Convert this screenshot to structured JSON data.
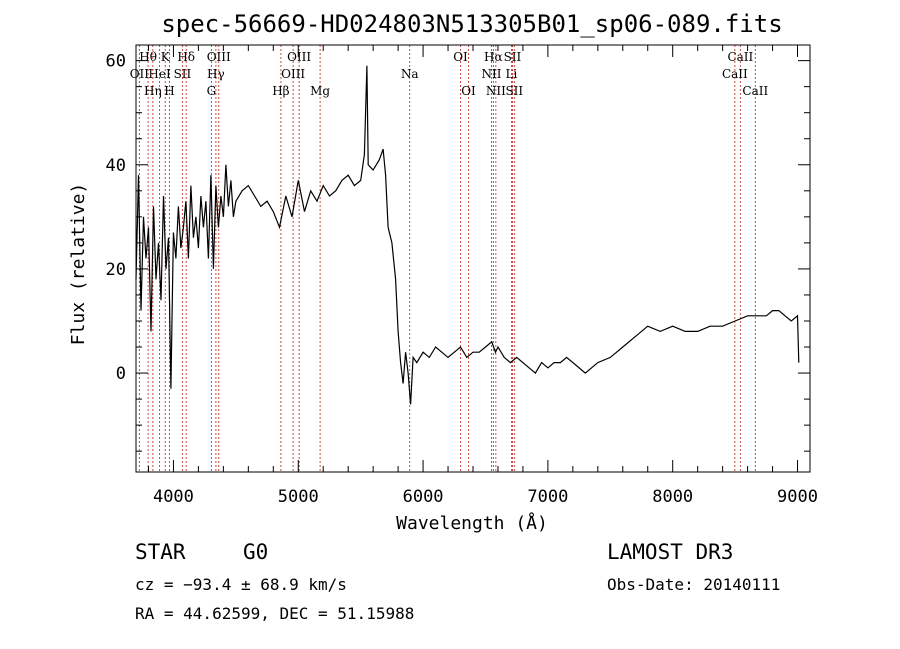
{
  "chart_data": {
    "type": "line",
    "title": "spec-56669-HD024803N513305B01_sp06-089.fits",
    "xlabel": "Wavelength (Å)",
    "ylabel": "Flux (relative)",
    "xlim": [
      3700,
      9100
    ],
    "ylim": [
      -19,
      63
    ],
    "xticks": [
      4000,
      5000,
      6000,
      7000,
      8000,
      9000
    ],
    "yticks": [
      0,
      20,
      40,
      60
    ],
    "grid": false,
    "series": [
      {
        "x": [
          3700,
          3720,
          3740,
          3760,
          3780,
          3800,
          3820,
          3840,
          3860,
          3880,
          3900,
          3920,
          3940,
          3960,
          3980,
          4000,
          4020,
          4040,
          4060,
          4080,
          4100,
          4120,
          4140,
          4160,
          4180,
          4200,
          4220,
          4240,
          4260,
          4280,
          4300,
          4320,
          4340,
          4360,
          4380,
          4400,
          4420,
          4440,
          4460,
          4480,
          4500,
          4550,
          4600,
          4650,
          4700,
          4750,
          4800,
          4850,
          4900,
          4950,
          5000,
          5050,
          5100,
          5150,
          5200,
          5250,
          5300,
          5350,
          5400,
          5450,
          5500,
          5530,
          5550,
          5560,
          5600,
          5650,
          5680,
          5700,
          5720,
          5750,
          5780,
          5800,
          5820,
          5840,
          5860,
          5880,
          5900,
          5920,
          5950,
          6000,
          6050,
          6100,
          6150,
          6200,
          6250,
          6300,
          6350,
          6400,
          6450,
          6500,
          6550,
          6580,
          6600,
          6650,
          6700,
          6750,
          6800,
          6850,
          6900,
          6950,
          7000,
          7050,
          7100,
          7150,
          7200,
          7300,
          7400,
          7500,
          7600,
          7700,
          7800,
          7900,
          8000,
          8100,
          8200,
          8300,
          8400,
          8500,
          8600,
          8700,
          8750,
          8800,
          8850,
          8900,
          8950,
          9000,
          9010
        ],
        "y": [
          18,
          38,
          12,
          30,
          22,
          28,
          8,
          32,
          18,
          25,
          14,
          34,
          20,
          26,
          -3,
          27,
          22,
          32,
          24,
          28,
          33,
          22,
          36,
          26,
          30,
          24,
          34,
          28,
          33,
          22,
          38,
          20,
          36,
          28,
          34,
          30,
          40,
          32,
          37,
          30,
          33,
          35,
          36,
          34,
          32,
          33,
          31,
          28,
          34,
          30,
          37,
          31,
          35,
          33,
          36,
          34,
          35,
          37,
          38,
          36,
          37,
          42,
          59,
          40,
          39,
          41,
          43,
          38,
          28,
          25,
          18,
          8,
          2,
          -2,
          4,
          0,
          -6,
          3,
          2,
          4,
          3,
          5,
          4,
          3,
          4,
          5,
          3,
          4,
          4,
          5,
          6,
          4,
          5,
          3,
          2,
          3,
          2,
          1,
          0,
          2,
          1,
          2,
          2,
          3,
          2,
          0,
          2,
          3,
          5,
          7,
          9,
          8,
          9,
          8,
          8,
          9,
          9,
          10,
          11,
          11,
          11,
          12,
          12,
          11,
          10,
          11,
          2
        ]
      }
    ],
    "emission_lines": [
      {
        "label": "OII",
        "wave": 3727,
        "row": 1
      },
      {
        "label": "Hθ",
        "wave": 3797,
        "row": 0
      },
      {
        "label": "Hη",
        "wave": 3835,
        "row": 2
      },
      {
        "label": "HeI",
        "wave": 3889,
        "row": 1
      },
      {
        "label": "K",
        "wave": 3934,
        "row": 0
      },
      {
        "label": "H",
        "wave": 3968,
        "row": 2
      },
      {
        "label": "SII",
        "wave": 4072,
        "row": 1
      },
      {
        "label": "Hδ",
        "wave": 4102,
        "row": 0
      },
      {
        "label": "G",
        "wave": 4304,
        "row": 2
      },
      {
        "label": "Hγ",
        "wave": 4340,
        "row": 1
      },
      {
        "label": "OIII",
        "wave": 4363,
        "row": 0
      },
      {
        "label": "Hβ",
        "wave": 4861,
        "row": 2
      },
      {
        "label": "OIII",
        "wave": 4959,
        "row": 1
      },
      {
        "label": "OIII",
        "wave": 5007,
        "row": 0
      },
      {
        "label": "Mg",
        "wave": 5175,
        "row": 2
      },
      {
        "label": "Na",
        "wave": 5893,
        "row": 1
      },
      {
        "label": "OI",
        "wave": 6300,
        "row": 0
      },
      {
        "label": "OI",
        "wave": 6364,
        "row": 2
      },
      {
        "label": "NII",
        "wave": 6548,
        "row": 1
      },
      {
        "label": "Hα",
        "wave": 6563,
        "row": 0
      },
      {
        "label": "NII",
        "wave": 6583,
        "row": 2
      },
      {
        "label": "Li",
        "wave": 6708,
        "row": 1
      },
      {
        "label": "SII",
        "wave": 6716,
        "row": 0
      },
      {
        "label": "SII",
        "wave": 6731,
        "row": 2
      },
      {
        "label": "CaII",
        "wave": 8498,
        "row": 1
      },
      {
        "label": "CaII",
        "wave": 8542,
        "row": 0
      },
      {
        "label": "CaII",
        "wave": 8662,
        "row": 2
      }
    ]
  },
  "info": {
    "class_label": "STAR",
    "subclass": "G0",
    "survey": "LAMOST DR3",
    "cz": "cz = −93.4 ± 68.9 km/s",
    "obs_date": "Obs-Date: 20140111",
    "coords": "RA =  44.62599, DEC =  51.15988"
  },
  "colors": {
    "spectrum": "#000000",
    "line_marker": "#c0392b"
  }
}
